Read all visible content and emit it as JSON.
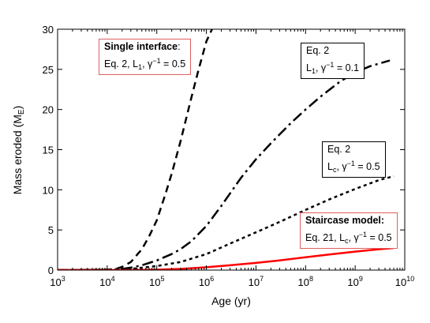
{
  "chart_data": {
    "type": "line",
    "xlabel": "Age (yr)",
    "ylabel": "Mass eroded (M",
    "ylabel_sub": "E",
    "ylabel_close": ")",
    "x_scale": "log",
    "xlim": [
      1000,
      10000000000
    ],
    "ylim": [
      0,
      30
    ],
    "x_ticks": [
      {
        "value": 1000,
        "base": "10",
        "exp": "3"
      },
      {
        "value": 10000,
        "base": "10",
        "exp": "4"
      },
      {
        "value": 100000,
        "base": "10",
        "exp": "5"
      },
      {
        "value": 1000000,
        "base": "10",
        "exp": "6"
      },
      {
        "value": 10000000,
        "base": "10",
        "exp": "7"
      },
      {
        "value": 100000000,
        "base": "10",
        "exp": "8"
      },
      {
        "value": 1000000000,
        "base": "10",
        "exp": "9"
      },
      {
        "value": 10000000000,
        "base": "10",
        "exp": "10"
      }
    ],
    "y_ticks": [
      "0",
      "5",
      "10",
      "15",
      "20",
      "25",
      "30"
    ],
    "grid": false,
    "series": [
      {
        "id": "single_interface",
        "style": "dashed",
        "color": "#000000",
        "x": [
          1000,
          10000,
          15000,
          20000,
          30000,
          50000,
          70000,
          100000,
          150000,
          200000,
          300000,
          500000,
          700000,
          1000000,
          1300000
        ],
        "y": [
          0,
          0.05,
          0.15,
          0.4,
          1.0,
          2.6,
          4.2,
          6.2,
          9.5,
          12.0,
          16.0,
          21.5,
          25.0,
          28.5,
          30.0
        ]
      },
      {
        "id": "eq2_L1",
        "style": "dash-dot",
        "color": "#000000",
        "x": [
          1000,
          10000,
          20000,
          30000,
          50000,
          100000,
          200000,
          300000,
          500000,
          1000000,
          2000000,
          5000000,
          10000000,
          20000000,
          50000000,
          100000000,
          200000000,
          500000000,
          1000000000,
          2000000000,
          5000000000
        ],
        "y": [
          0,
          0.05,
          0.15,
          0.3,
          0.6,
          1.2,
          2.0,
          2.6,
          3.6,
          5.5,
          8.0,
          11.5,
          13.8,
          15.8,
          18.3,
          20.0,
          21.6,
          23.5,
          24.6,
          25.4,
          26.1
        ]
      },
      {
        "id": "eq2_Lc",
        "style": "dotted",
        "color": "#000000",
        "x": [
          1000,
          10000,
          30000,
          100000,
          300000,
          1000000,
          3000000,
          10000000,
          30000000,
          100000000,
          300000000,
          1000000000,
          3000000000,
          6000000000
        ],
        "y": [
          0,
          0.02,
          0.15,
          0.5,
          1.0,
          2.0,
          3.3,
          4.7,
          6.0,
          7.5,
          8.8,
          10.1,
          11.2,
          11.7
        ]
      },
      {
        "id": "staircase",
        "style": "solid",
        "color": "#ff0000",
        "x": [
          1000,
          30000,
          100000,
          300000,
          1000000,
          3000000,
          10000000,
          30000000,
          100000000,
          300000000,
          1000000000,
          3000000000,
          6000000000
        ],
        "y": [
          0,
          0.0,
          0.05,
          0.15,
          0.35,
          0.6,
          0.9,
          1.2,
          1.6,
          1.95,
          2.3,
          2.6,
          2.75
        ]
      }
    ]
  },
  "annotations": {
    "single_interface": {
      "line1_bold": "Single interface",
      "line1_rest": ":",
      "line2_a": "Eq. 2,  L",
      "line2_sub": "1",
      "line2_b": ", γ",
      "line2_sup": "−1",
      "line2_c": " = 0.5",
      "border_color": "#e06060"
    },
    "eq2_L1": {
      "line1": "Eq. 2",
      "line2_a": "L",
      "line2_sub": "1",
      "line2_b": ", γ",
      "line2_sup": "−1",
      "line2_c": " = 0.1",
      "border_color": "#000000"
    },
    "eq2_Lc": {
      "line1": "Eq. 2",
      "line2_a": "L",
      "line2_sub": "c",
      "line2_b": ", γ",
      "line2_sup": "−1",
      "line2_c": " = 0.5",
      "border_color": "#000000"
    },
    "staircase": {
      "line1_bold": "Staircase model:",
      "line2_a": "Eq. 21,  L",
      "line2_sub": "c",
      "line2_b": ", γ",
      "line2_sup": "−1",
      "line2_c": " = 0.5",
      "border_color": "#e06060"
    }
  }
}
